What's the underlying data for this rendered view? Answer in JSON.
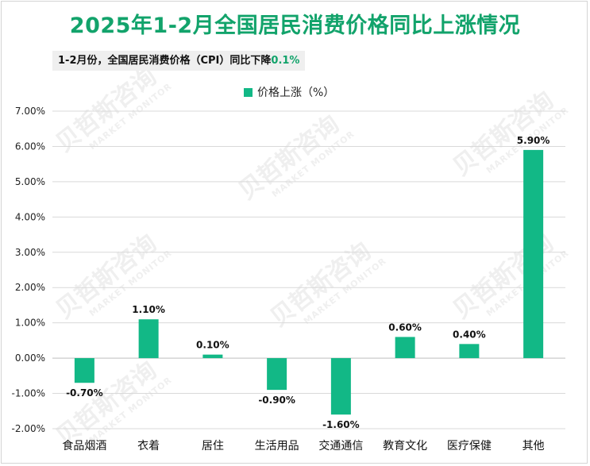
{
  "title": "2025年1-2月全国居民消费价格同比上涨情况",
  "subtitle": {
    "text": "1-2月份，全国居民消费价格（CPI）同比下降",
    "highlight": "0.1%"
  },
  "watermark": {
    "cn": "贝哲斯咨询",
    "en": "MARKET MONITOR"
  },
  "colors": {
    "bar": "#12b886",
    "title": "#12a36b",
    "grid": "#d9d9d9"
  },
  "chart_data": {
    "type": "bar",
    "title": "2025年1-2月全国居民消费价格同比上涨情况",
    "categories": [
      "食品烟酒",
      "衣着",
      "居住",
      "生活用品",
      "交通通信",
      "教育文化",
      "医疗保健",
      "其他"
    ],
    "series": [
      {
        "name": "价格上涨（%）",
        "values": [
          -0.7,
          1.1,
          0.1,
          -0.9,
          -1.6,
          0.6,
          0.4,
          5.9
        ]
      }
    ],
    "value_labels": [
      "-0.70%",
      "1.10%",
      "0.10%",
      "-0.90%",
      "-1.60%",
      "0.60%",
      "0.40%",
      "5.90%"
    ],
    "y_ticks": [
      7,
      6,
      5,
      4,
      3,
      2,
      1,
      0,
      -1,
      -2
    ],
    "y_tick_labels": [
      "7.00%",
      "6.00%",
      "5.00%",
      "4.00%",
      "3.00%",
      "2.00%",
      "1.00%",
      "0.00%",
      "-1.00%",
      "-2.00%"
    ],
    "ylim": [
      -2,
      7
    ],
    "xlabel": "",
    "ylabel": "",
    "legend_position": "top-center",
    "grid": true
  }
}
